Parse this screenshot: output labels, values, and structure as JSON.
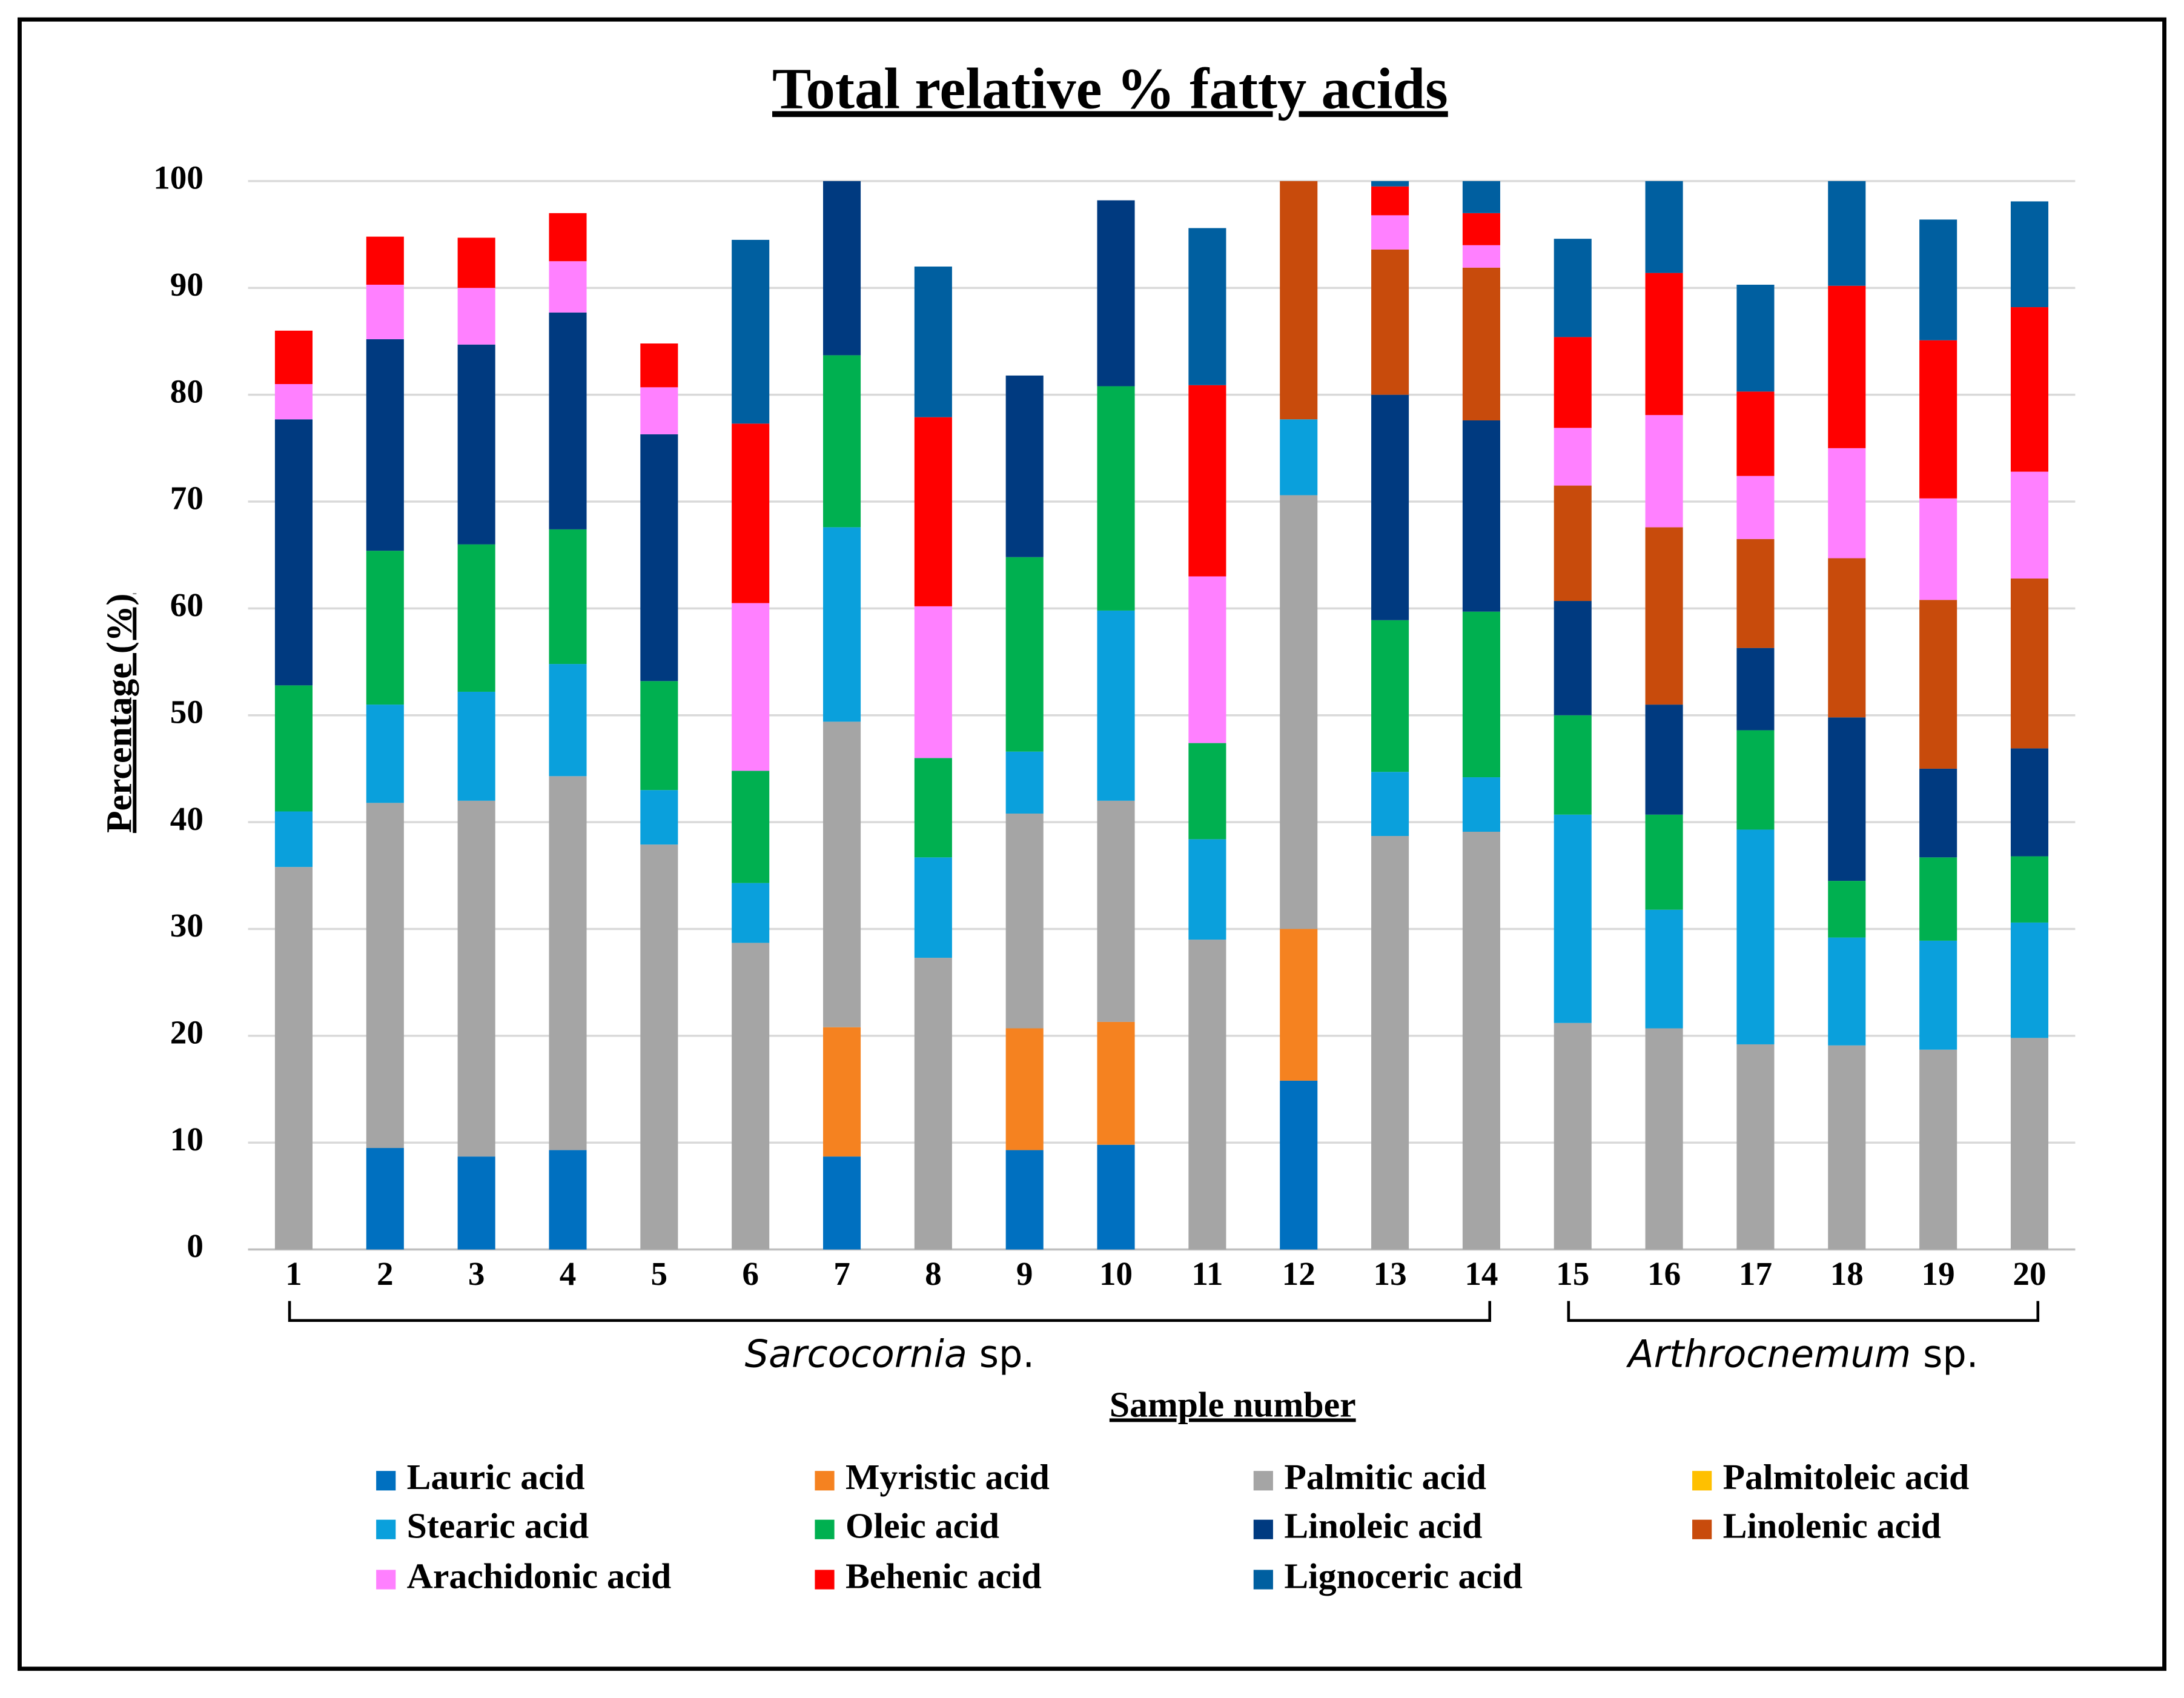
{
  "chart_data": {
    "type": "stacked_bar",
    "title": "Total relative % fatty acids",
    "x_label": "Sample number",
    "y_label": "Percentage (%)",
    "categories": [
      "1",
      "2",
      "3",
      "4",
      "5",
      "6",
      "7",
      "8",
      "9",
      "10",
      "11",
      "12",
      "13",
      "14",
      "15",
      "16",
      "17",
      "18",
      "19",
      "20"
    ],
    "groups": [
      {
        "genus": "Sarcocornia",
        "rank": "sp."
      },
      {
        "genus": "Arthrocnemum",
        "rank": "sp."
      }
    ],
    "ylim": [
      0,
      100
    ],
    "yticks": [
      0,
      10,
      20,
      30,
      40,
      50,
      60,
      70,
      80,
      90,
      100
    ],
    "grid": true,
    "series": [
      {
        "name": "Lauric acid",
        "color": "#0070c0",
        "values": [
          0,
          9.5,
          8.7,
          9.3,
          0,
          0,
          8.7,
          0,
          9.3,
          9.8,
          0,
          15.8,
          0,
          0,
          0,
          0,
          0,
          0,
          0,
          0
        ]
      },
      {
        "name": "Myristic acid",
        "color": "#f58220",
        "values": [
          0,
          0,
          0,
          0,
          0,
          0,
          12.1,
          0,
          11.4,
          11.5,
          0,
          14.2,
          0,
          0,
          0,
          0,
          0,
          0,
          0,
          0
        ]
      },
      {
        "name": "Palmitic acid",
        "color": "#a5a5a5",
        "values": [
          35.8,
          32.3,
          33.3,
          35,
          37.9,
          28.7,
          28.6,
          27.3,
          20.1,
          20.7,
          29,
          40.6,
          38.7,
          39.1,
          21.2,
          20.7,
          19.2,
          19.1,
          18.7,
          19.8
        ]
      },
      {
        "name": "Palmitoleic acid",
        "color": "#ffc000",
        "values": [
          0,
          0,
          0,
          0,
          0,
          0,
          0,
          0,
          0,
          0,
          0,
          0,
          0,
          0,
          0,
          0,
          0,
          0,
          0,
          0
        ]
      },
      {
        "name": "Stearic acid",
        "color": "#0aa0dc",
        "values": [
          5.2,
          9.2,
          10.2,
          10.5,
          5.1,
          5.6,
          18.2,
          9.4,
          5.8,
          17.8,
          9.4,
          7.1,
          6,
          5.1,
          19.5,
          11.1,
          20.1,
          10.1,
          10.2,
          10.8
        ]
      },
      {
        "name": "Oleic acid",
        "color": "#00b050",
        "values": [
          11.8,
          14.4,
          13.8,
          12.6,
          10.2,
          10.5,
          16.1,
          9.3,
          18.2,
          21,
          9,
          0,
          14.2,
          15.5,
          9.3,
          8.9,
          9.3,
          5.3,
          7.8,
          6.2
        ]
      },
      {
        "name": "Linoleic acid",
        "color": "#003a80",
        "values": [
          24.9,
          19.8,
          18.7,
          20.3,
          23.1,
          0,
          16.3,
          0,
          17,
          17.4,
          0,
          0,
          21.1,
          17.9,
          10.7,
          10.3,
          7.7,
          15.3,
          8.3,
          10.1
        ]
      },
      {
        "name": "Linolenic acid",
        "color": "#c84b0c",
        "values": [
          0,
          0,
          0,
          0,
          0,
          0,
          0,
          0,
          0,
          0,
          0,
          22.3,
          13.6,
          14.3,
          10.8,
          16.6,
          10.2,
          14.9,
          15.8,
          15.9
        ]
      },
      {
        "name": "Arachidonic acid",
        "color": "#ff80ff",
        "values": [
          3.3,
          5.1,
          5.3,
          4.8,
          4.4,
          15.7,
          0,
          14.2,
          0,
          0,
          15.6,
          0,
          3.2,
          2.1,
          5.4,
          10.5,
          5.9,
          10.3,
          9.5,
          10
        ]
      },
      {
        "name": "Behenic acid",
        "color": "#ff0000",
        "values": [
          5,
          4.5,
          4.7,
          4.5,
          4.1,
          16.8,
          0,
          17.7,
          0,
          0,
          17.9,
          0,
          2.7,
          3,
          8.5,
          13.3,
          7.9,
          15.2,
          14.8,
          15.4
        ]
      },
      {
        "name": "Lignoceric acid",
        "color": "#005fa0",
        "values": [
          0,
          0,
          0,
          0,
          0,
          17.2,
          0,
          14.1,
          0,
          0,
          14.7,
          0,
          0.5,
          3,
          9.2,
          8.6,
          10,
          9.8,
          11.3,
          9.9
        ]
      }
    ]
  }
}
